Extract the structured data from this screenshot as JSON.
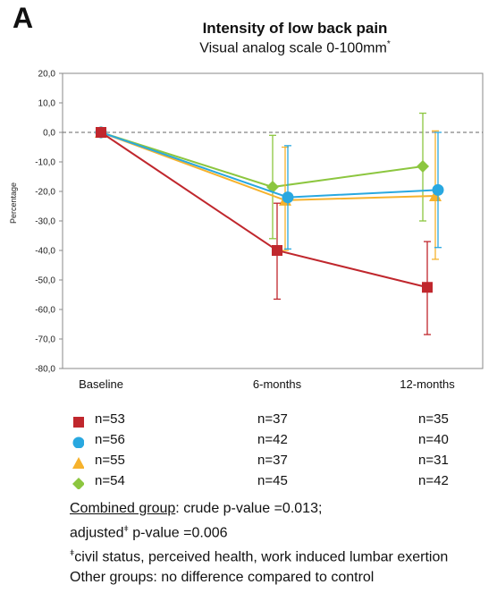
{
  "panel_label": "A",
  "chart_data": {
    "type": "line",
    "title": "Intensity of low back pain",
    "subtitle": "Visual analog scale 0-100mm",
    "subtitle_mark": "*",
    "ylabel": "Percentage",
    "xlabel": "",
    "ylim": [
      -80,
      20
    ],
    "yticks": [
      "20,0",
      "10,0",
      "0,0",
      "-10,0",
      "-20,0",
      "-30,0",
      "-40,0",
      "-50,0",
      "-60,0",
      "-70,0",
      "-80,0"
    ],
    "categories": [
      "Baseline",
      "6-months",
      "12-months"
    ],
    "reference_line": 0,
    "series": [
      {
        "marker": "square",
        "color": "#c0272d",
        "values": [
          0,
          -40,
          -52.5
        ],
        "err_low": [
          0,
          -56.5,
          -68.5
        ],
        "err_high": [
          0,
          -24,
          -37
        ]
      },
      {
        "marker": "circle",
        "color": "#29a8e0",
        "values": [
          0,
          -22,
          -19.5
        ],
        "err_low": [
          0,
          -39.5,
          -39
        ],
        "err_high": [
          0,
          -4.5,
          0
        ]
      },
      {
        "marker": "triangle",
        "color": "#f6b22d",
        "values": [
          0,
          -23,
          -21.5
        ],
        "err_low": [
          0,
          -40,
          -43
        ],
        "err_high": [
          0,
          -5,
          0.5
        ]
      },
      {
        "marker": "diamond",
        "color": "#8cc63f",
        "values": [
          0,
          -18.5,
          -11.5
        ],
        "err_low": [
          0,
          -36,
          -30
        ],
        "err_high": [
          0,
          -1,
          6.5
        ]
      }
    ]
  },
  "n_table": {
    "rows": [
      {
        "marker": "square",
        "color": "#c0272d",
        "cells": [
          "n=53",
          "n=37",
          "n=35"
        ]
      },
      {
        "marker": "circle",
        "color": "#29a8e0",
        "cells": [
          "n=56",
          "n=42",
          "n=40"
        ]
      },
      {
        "marker": "triangle",
        "color": "#f6b22d",
        "cells": [
          "n=55",
          "n=37",
          "n=31"
        ]
      },
      {
        "marker": "diamond",
        "color": "#8cc63f",
        "cells": [
          "n=54",
          "n=45",
          "n=42"
        ]
      }
    ]
  },
  "footnotes": {
    "combined_label": "Combined  group",
    "combined_text": ": crude p-value =0.013;",
    "adjusted_pre": "adjusted",
    "adjusted_mark": "ǂ",
    "adjusted_post": " p-value =0.006",
    "civil_mark": "ǂ",
    "civil_text": "civil  status, perceived health, work induced lumbar exertion",
    "other_text": "Other groups:  no difference compared to control"
  }
}
